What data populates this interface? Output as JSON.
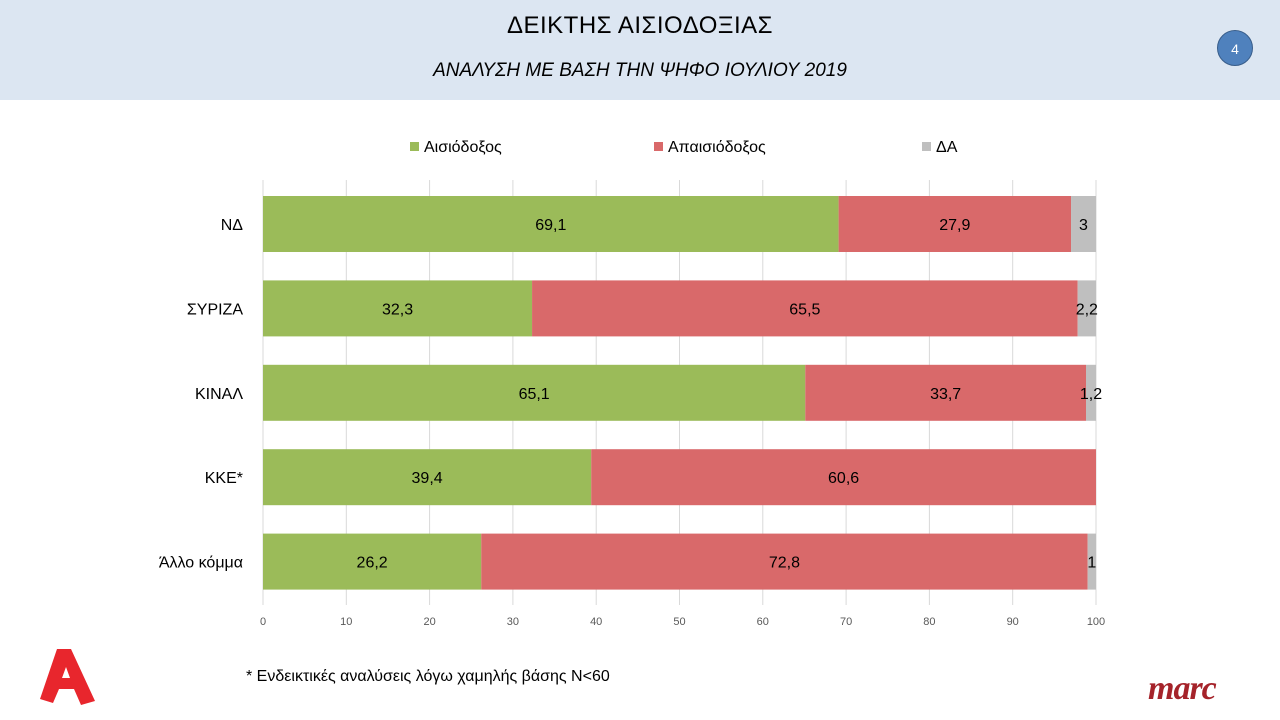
{
  "header": {
    "title": "ΔΕΙΚΤΗΣ ΑΙΣΙΟΔΟΞΙΑΣ",
    "subtitle": "ΑΝΑΛΥΣΗ ΜΕ ΒΑΣΗ ΤΗΝ ΨΗΦΟ ΙΟΥΛΙΟΥ 2019",
    "page_number": "4"
  },
  "footnote": "* Ενδεικτικές αναλύσεις λόγω χαμηλής βάσης Ν<60",
  "logos": {
    "alpha": "alpha-tv-logo",
    "marc": "marc"
  },
  "chart_data": {
    "type": "bar",
    "orientation": "horizontal",
    "stacked": true,
    "categories": [
      "ΝΔ",
      "ΣΥΡΙΖΑ",
      "ΚΙΝΑΛ",
      "ΚΚΕ*",
      "Άλλο κόμμα"
    ],
    "series": [
      {
        "name": "Αισιόδοξος",
        "color": "#9bbb59",
        "values": [
          69.1,
          32.3,
          65.1,
          39.4,
          26.2
        ],
        "labels": [
          "69,1",
          "32,3",
          "65,1",
          "39,4",
          "26,2"
        ]
      },
      {
        "name": "Απαισιόδοξος",
        "color": "#d9696a",
        "values": [
          27.9,
          65.5,
          33.7,
          60.6,
          72.8
        ],
        "labels": [
          "27,9",
          "65,5",
          "33,7",
          "60,6",
          "72,8"
        ]
      },
      {
        "name": "ΔΑ",
        "color": "#bfbfbf",
        "values": [
          3,
          2.2,
          1.2,
          0,
          1
        ],
        "labels": [
          "3",
          "2,2",
          "1,2",
          "",
          "1"
        ]
      }
    ],
    "xlim": [
      0,
      100
    ],
    "xticks": [
      "0",
      "10",
      "20",
      "30",
      "40",
      "50",
      "60",
      "70",
      "80",
      "90",
      "100"
    ],
    "grid": true,
    "legend": "top"
  }
}
